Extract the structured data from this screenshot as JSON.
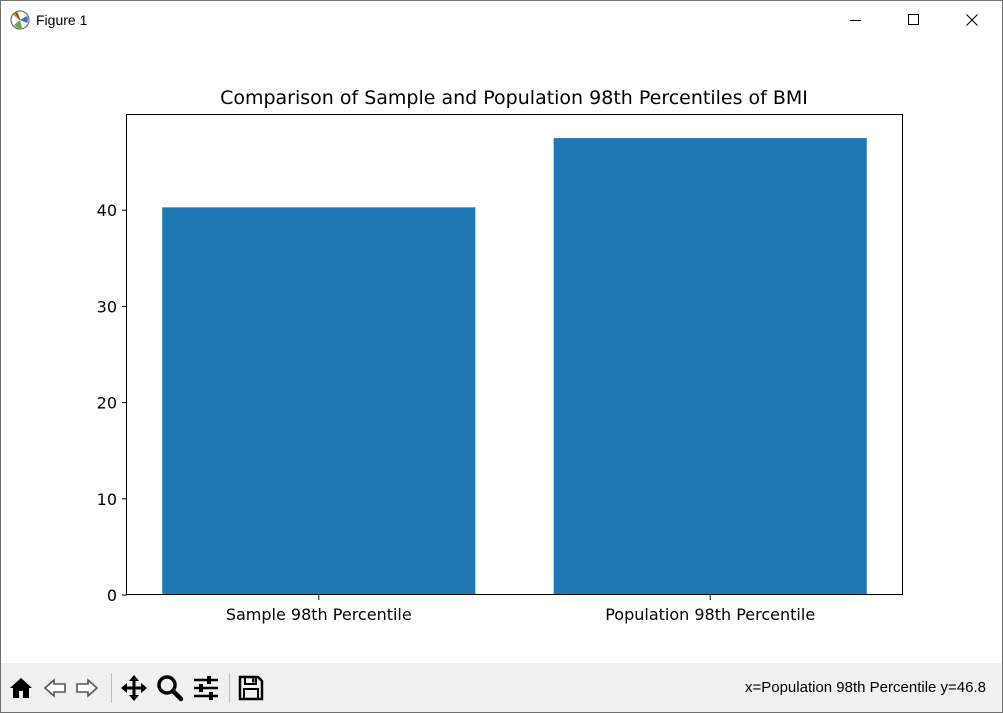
{
  "window": {
    "title": "Figure 1",
    "app_icon": "matplotlib-icon",
    "controls": [
      "minimize-icon",
      "maximize-icon",
      "close-icon"
    ]
  },
  "chart_data": {
    "type": "bar",
    "title": "Comparison of Sample and Population 98th Percentiles of BMI",
    "xlabel": "",
    "ylabel": "",
    "categories": [
      "Sample 98th Percentile",
      "Population 98th Percentile"
    ],
    "values": [
      40.3,
      47.5
    ],
    "ylim": [
      0,
      49.9
    ],
    "yticks": [
      0,
      10,
      20,
      30,
      40
    ],
    "grid": false,
    "bar_color": "#1f77b4"
  },
  "toolbar": {
    "tools": [
      "home-icon",
      "back-icon",
      "forward-icon",
      "pan-icon",
      "zoom-icon",
      "configure-subplots-icon",
      "save-icon"
    ],
    "status": "x=Population 98th Percentile y=46.8"
  }
}
